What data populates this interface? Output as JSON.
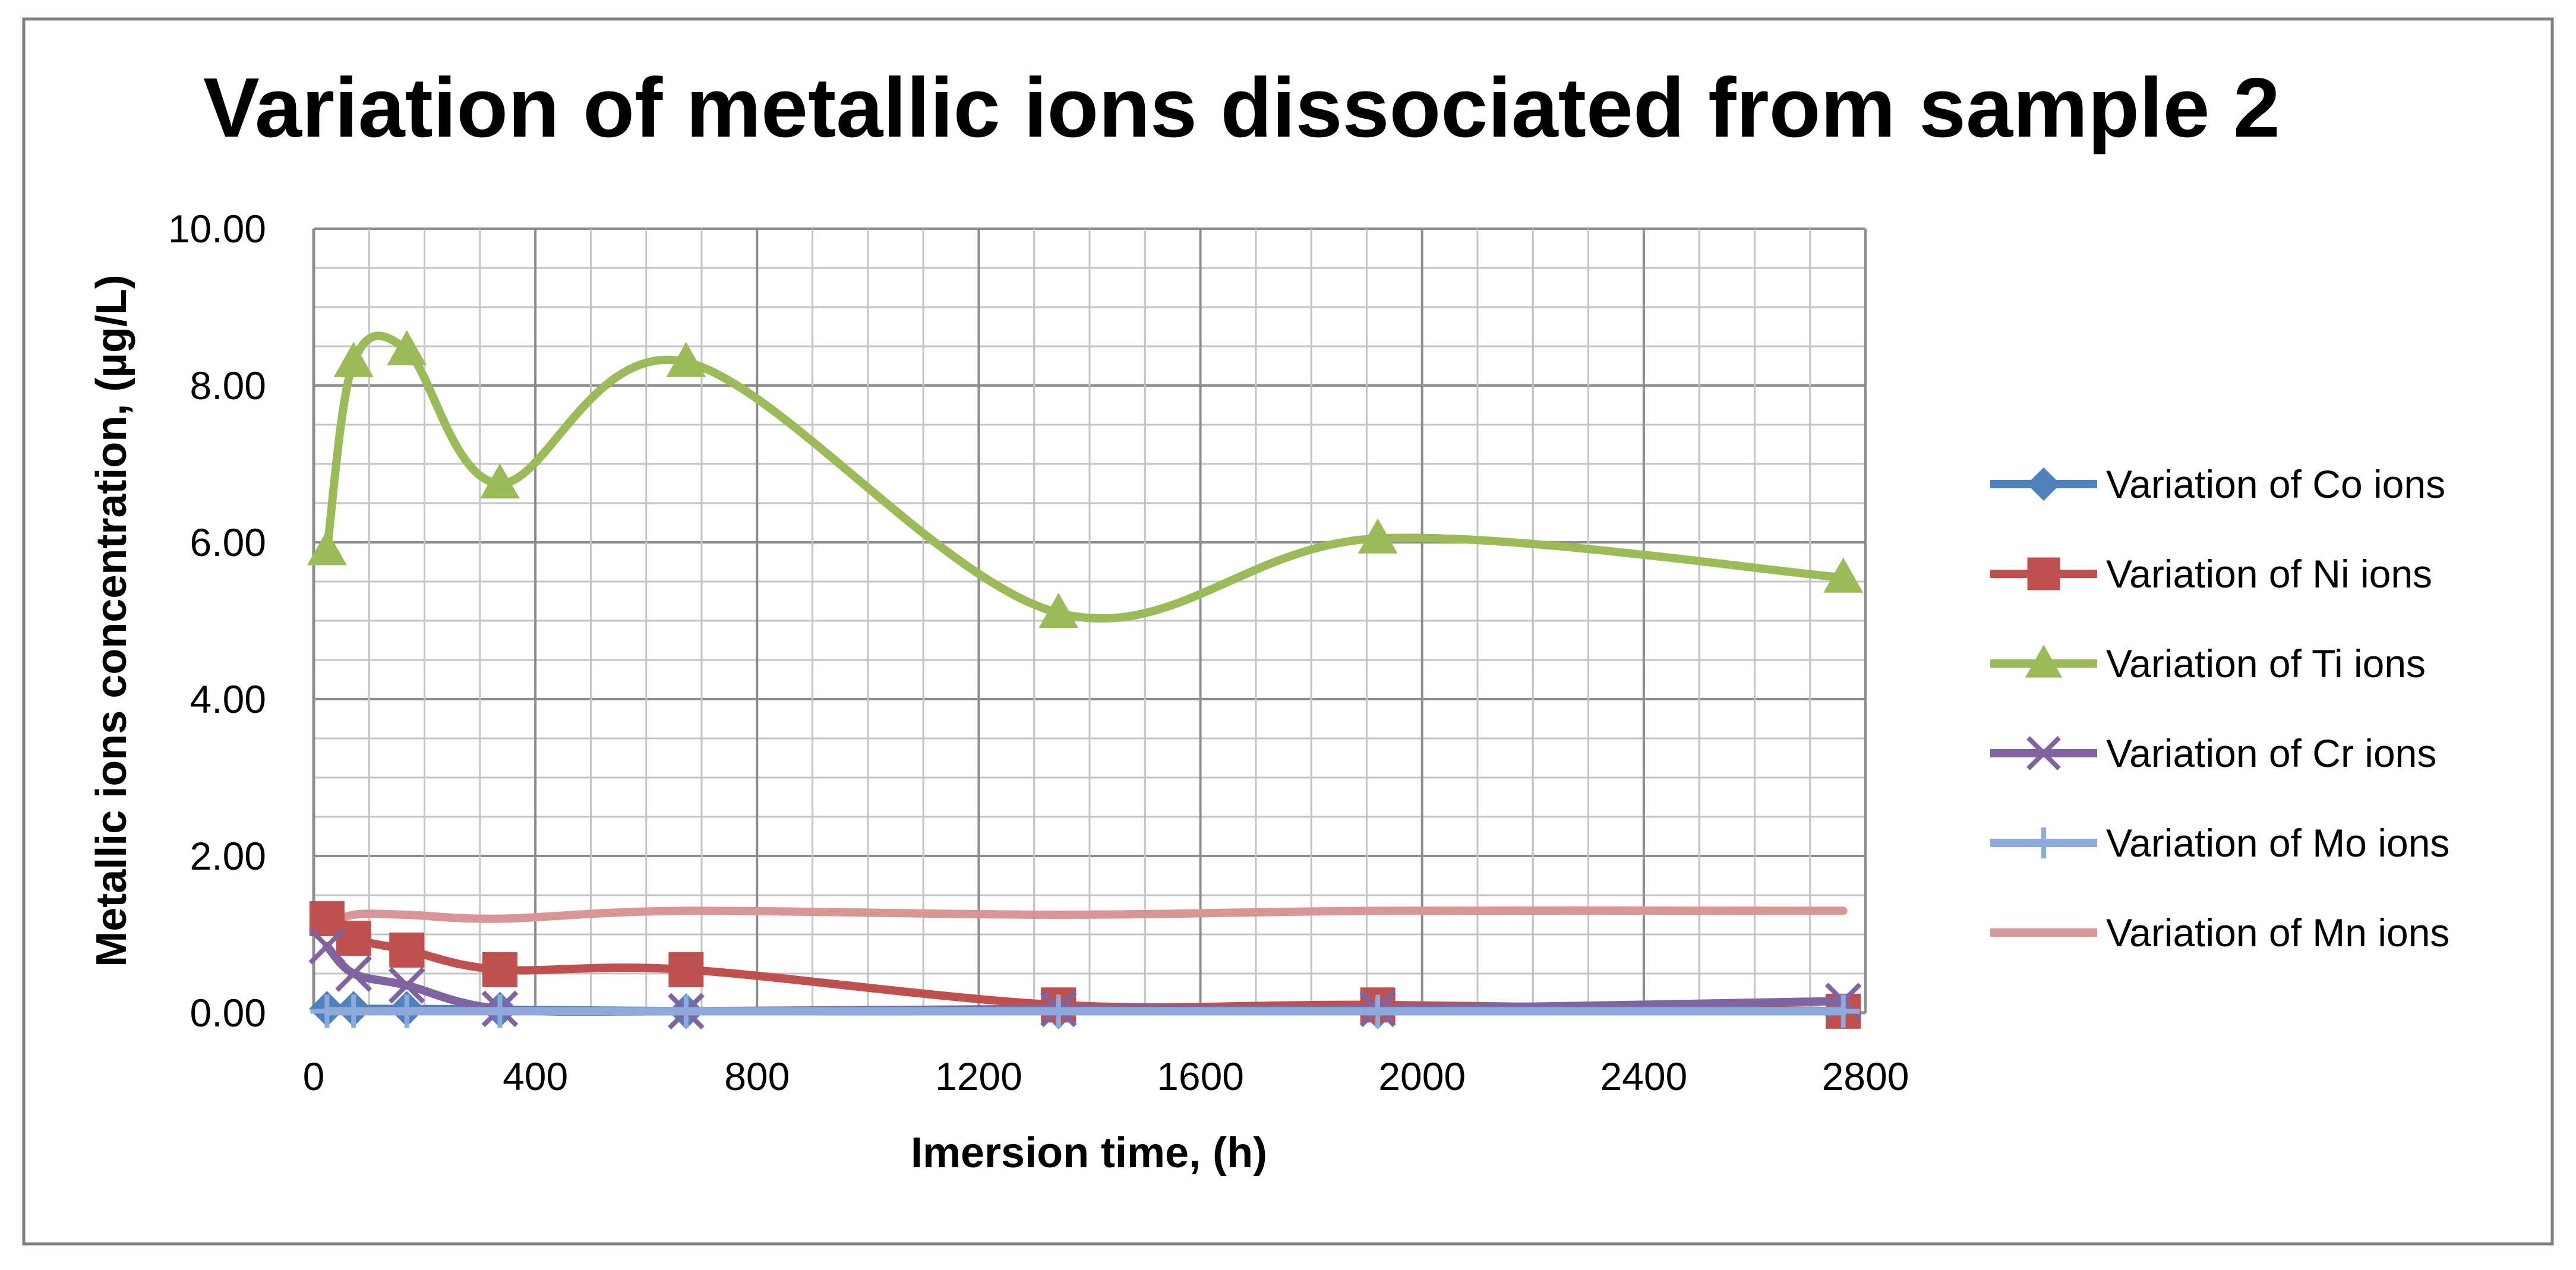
{
  "chart_data": {
    "type": "line",
    "title": "Variation of metallic ions dissociated from sample 2",
    "xlabel": "Imersion time, (h)",
    "ylabel": "Metallic ions concentration, (µg/L)",
    "xlim": [
      0,
      2800
    ],
    "ylim": [
      0,
      10
    ],
    "x_ticks": [
      "0",
      "400",
      "800",
      "1200",
      "1600",
      "2000",
      "2400",
      "2800"
    ],
    "y_ticks": [
      "0.00",
      "2.00",
      "4.00",
      "6.00",
      "8.00",
      "10.00"
    ],
    "grid": true,
    "legend_position": "right",
    "x": [
      24,
      72,
      168,
      336,
      672,
      1344,
      1920,
      2760
    ],
    "series": [
      {
        "name": "Variation of Co ions",
        "color": "#4F81BD",
        "marker": "diamond",
        "values": [
          0.05,
          0.05,
          0.05,
          0.04,
          0.02,
          0.02,
          0.02,
          0.02
        ]
      },
      {
        "name": "Variation of Ni ions",
        "color": "#C0504D",
        "marker": "square",
        "values": [
          1.2,
          0.95,
          0.8,
          0.55,
          0.55,
          0.1,
          0.1,
          0.02
        ]
      },
      {
        "name": "Variation of Ti ions",
        "color": "#9BBB59",
        "marker": "triangle",
        "values": [
          5.9,
          8.3,
          8.45,
          6.75,
          8.3,
          5.1,
          6.05,
          5.55
        ]
      },
      {
        "name": "Variation of Cr ions",
        "color": "#8064A2",
        "marker": "x",
        "values": [
          0.85,
          0.5,
          0.35,
          0.05,
          0.02,
          0.05,
          0.05,
          0.15
        ]
      },
      {
        "name": "Variation of Mo ions",
        "color": "#8EA9DB",
        "marker": "plus",
        "values": [
          0.02,
          0.02,
          0.02,
          0.02,
          0.02,
          0.02,
          0.02,
          0.02
        ]
      },
      {
        "name": "Variation of Mn ions",
        "color": "#D99694",
        "marker": "none",
        "values": [
          1.1,
          1.25,
          1.25,
          1.2,
          1.3,
          1.25,
          1.3,
          1.3
        ]
      }
    ]
  }
}
